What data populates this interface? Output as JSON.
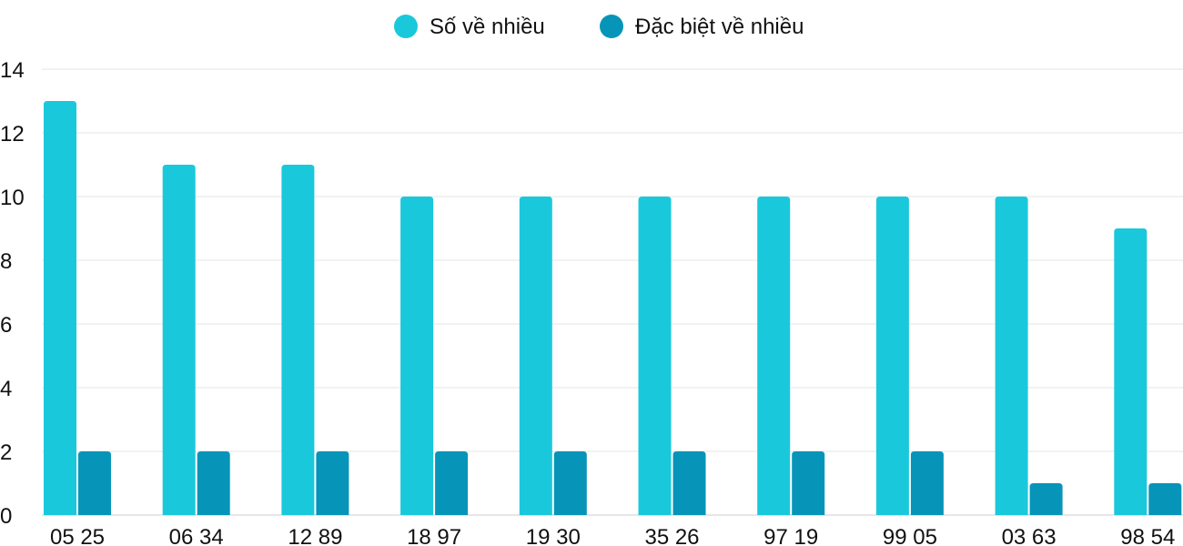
{
  "chart_data": {
    "type": "bar",
    "title": "",
    "xlabel": "",
    "ylabel": "",
    "categories": [
      "05 25",
      "06 34",
      "12 89",
      "18 97",
      "19 30",
      "35 26",
      "97 19",
      "99 05",
      "03 63",
      "98 54"
    ],
    "series": [
      {
        "name": "Số về nhiều",
        "color": "#1ac8db",
        "values": [
          13,
          11,
          11,
          10,
          10,
          10,
          10,
          10,
          10,
          9
        ]
      },
      {
        "name": "Đặc biệt về nhiều",
        "color": "#0695b8",
        "values": [
          2,
          2,
          2,
          2,
          2,
          2,
          2,
          2,
          1,
          1
        ]
      }
    ],
    "ylim": [
      0,
      14
    ],
    "yticks": [
      "0",
      "2",
      "4",
      "6",
      "8",
      "10",
      "12",
      "14"
    ],
    "grid": true,
    "legend_position": "top-center"
  }
}
